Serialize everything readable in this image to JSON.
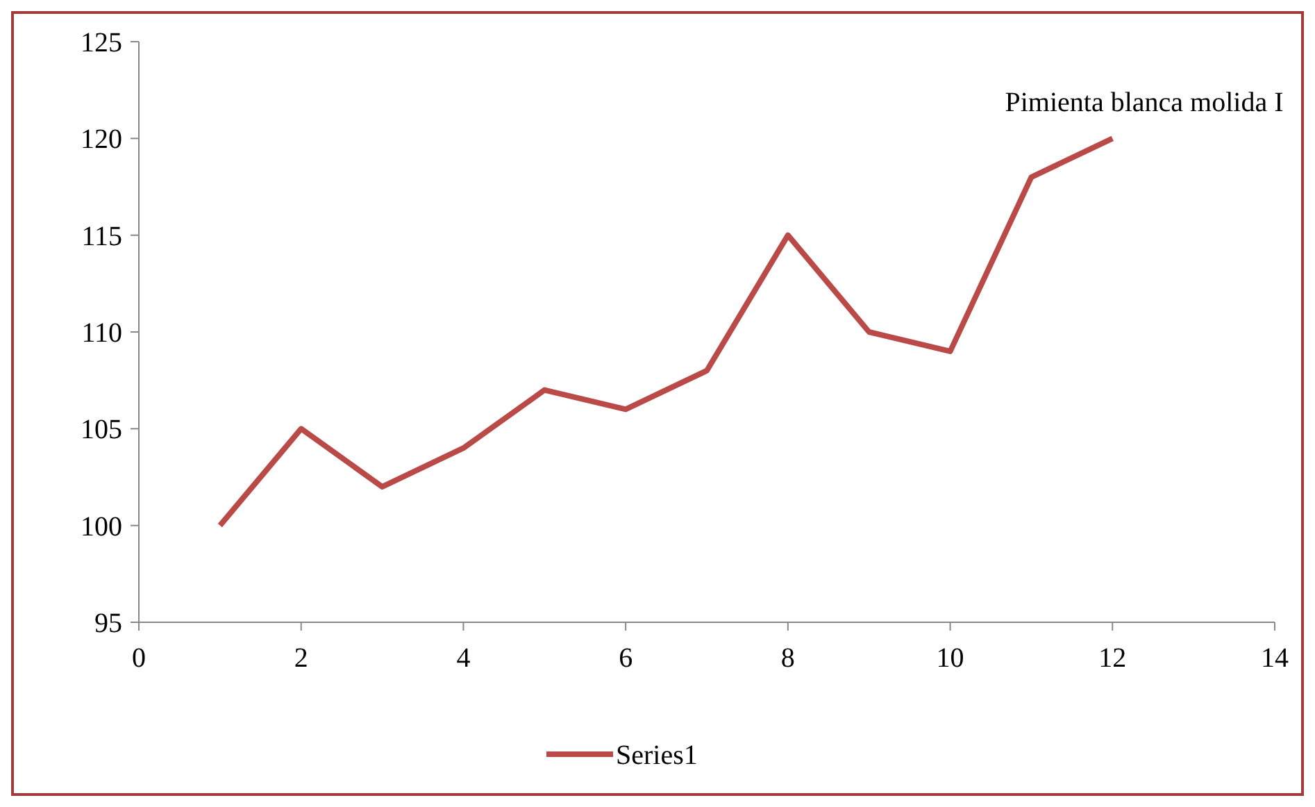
{
  "chart_data": {
    "type": "line",
    "title": "Pimienta blanca molida I",
    "x": [
      1,
      2,
      3,
      4,
      5,
      6,
      7,
      8,
      9,
      10,
      11,
      12
    ],
    "series": [
      {
        "name": "Series1",
        "color": "#b94a48",
        "values": [
          100,
          105,
          102,
          104,
          107,
          106,
          108,
          115,
          110,
          109,
          118,
          120
        ]
      }
    ],
    "xlim": [
      0,
      14
    ],
    "xticks": [
      0,
      2,
      4,
      6,
      8,
      10,
      12,
      14
    ],
    "ylim": [
      95,
      125
    ],
    "yticks": [
      95,
      100,
      105,
      110,
      115,
      120,
      125
    ],
    "grid": false,
    "legend": "bottom",
    "line_style": "solid"
  }
}
